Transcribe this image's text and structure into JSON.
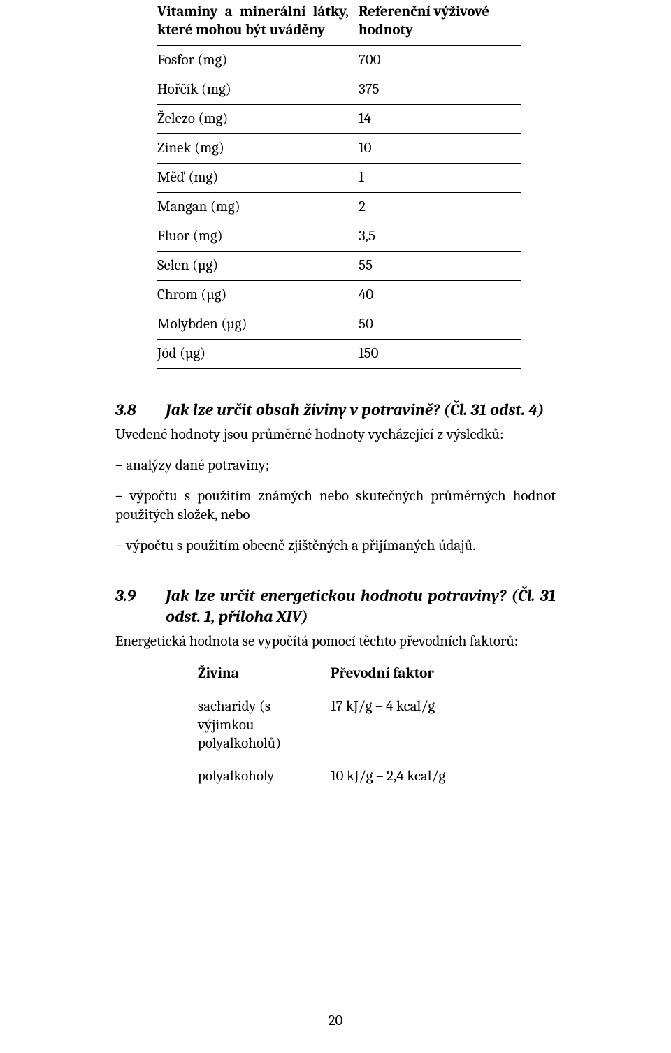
{
  "table1": {
    "header_left": "Vitaminy a minerální látky, které mohou být uváděny",
    "header_right": "Referenční výživové hodnoty",
    "rows": [
      {
        "label": "Fosfor (mg)",
        "value": "700"
      },
      {
        "label": "Hořčík (mg)",
        "value": "375"
      },
      {
        "label": "Železo (mg)",
        "value": "14"
      },
      {
        "label": "Zinek (mg)",
        "value": "10"
      },
      {
        "label": "Měď (mg)",
        "value": "1"
      },
      {
        "label": "Mangan (mg)",
        "value": "2"
      },
      {
        "label": "Fluor (mg)",
        "value": "3,5"
      },
      {
        "label": "Selen (µg)",
        "value": "55"
      },
      {
        "label": "Chrom (µg)",
        "value": "40"
      },
      {
        "label": "Molybden (µg)",
        "value": "50"
      },
      {
        "label": "Jód (µg)",
        "value": "150"
      }
    ]
  },
  "section38": {
    "number": "3.8",
    "title": "Jak lze určit obsah živiny v potravině? (Čl. 31 odst. 4)",
    "intro": "Uvedené hodnoty jsou průměrné hodnoty vycházející z výsledků:",
    "items": [
      "– analýzy dané potraviny;",
      "– výpočtu s použitím známých nebo skutečných průměrných hodnot použitých složek, nebo",
      "– výpočtu s použitím obecně zjištěných a přijímaných údajů."
    ]
  },
  "section39": {
    "number": "3.9",
    "title": "Jak lze určit energetickou hodnotu potraviny? (Čl. 31 odst. 1, příloha XIV)",
    "intro": "Energetická hodnota se vypočítá pomocí těchto převodních faktorů:"
  },
  "table2": {
    "header_left": "Živina",
    "header_right": "Převodní faktor",
    "rows": [
      {
        "label": "sacharidy (s výjimkou polyalkoholů)",
        "value": "17 kJ/g – 4 kcal/g"
      },
      {
        "label": "polyalkoholy",
        "value": "10 kJ/g – 2,4 kcal/g"
      }
    ]
  },
  "page_number": "20"
}
